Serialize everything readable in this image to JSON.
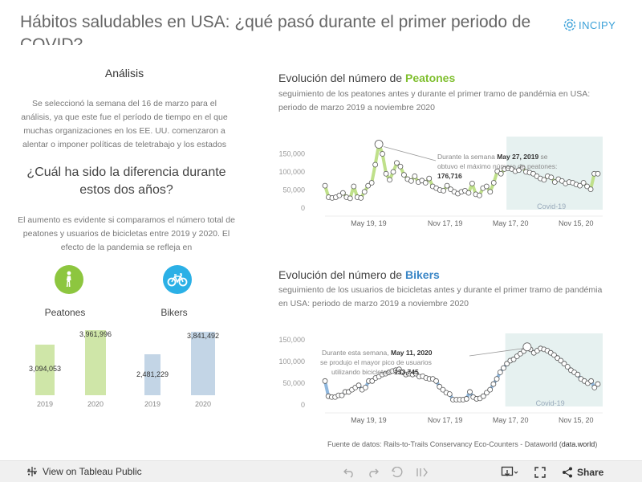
{
  "header": {
    "title": "Hábitos saludables en USA: ¿qué pasó durante el primer periodo de COVID?",
    "logo_text": "INCIPY"
  },
  "left": {
    "analysis_heading": "Análisis",
    "analysis_text": "Se seleccionó la semana del 16 de marzo para el análisis, ya que este fue el período de tiempo en el que muchas organizaciones en los EE. UU. comenzaron a alentar o imponer políticas de teletrabajo y los estados impusieron",
    "question": "¿Cuál ha sido la diferencia durante estos dos años?",
    "difference_text": "El aumento es evidente si comparamos el número total de peatones y usuarios de bicicletas entre 2019 y 2020. El efecto de la pandemia se refleja en",
    "peatones_label": "Peatones",
    "bikers_label": "Bikers",
    "colors": {
      "peatones": "#8dc63f",
      "bikers": "#2bb0e6"
    }
  },
  "totals": {
    "type": "bar",
    "groups": [
      {
        "name": "Peatones",
        "bars": [
          {
            "year": "2019",
            "value": 3094053,
            "label": "3,094,053"
          },
          {
            "year": "2020",
            "value": 3961996,
            "label": "3,961,996"
          }
        ],
        "color": "#cfe6a8"
      },
      {
        "name": "Bikers",
        "bars": [
          {
            "year": "2019",
            "value": 2481229,
            "label": "2,481,229"
          },
          {
            "year": "2020",
            "value": 3841492,
            "label": "3,841,492"
          }
        ],
        "color": "#c3d5e6"
      }
    ]
  },
  "peatones": {
    "title_prefix": "Evolución del número de ",
    "title_highlight": "Peatones",
    "subtitle": "seguimiento de los peatones antes y durante el primer tramo de pandémia en USA: periodo de marzo 2019  a noviembre 2020",
    "annotation_prefix": "Durante la semana",
    "annotation_date": "May 27, 2019",
    "annotation_mid": "se obtuvo el máximo número de peatones:",
    "annotation_value": "176,716",
    "shade_label": "Covid-19"
  },
  "bikers": {
    "title_prefix": "Evolución del número de ",
    "title_highlight": "Bikers",
    "subtitle": "seguimiento de los usuarios de bicicletas antes y durante el primer tramo de pandémia en USA: periodo de marzo 2019  a noviembre 2020",
    "annotation_prefix": "Durante esta semana,",
    "annotation_date": "May 11, 2020",
    "annotation_mid": "se produjo el mayor pico de usuarios utilizando bicicletas:",
    "annotation_value": "133,745",
    "shade_label": "Covid-19"
  },
  "chart_data": [
    {
      "type": "line",
      "title": "Evolución del número de Peatones",
      "ylim": [
        0,
        180000
      ],
      "yticks": [
        {
          "value": 150000,
          "label": "150,000"
        },
        {
          "value": 100000,
          "label": "100,000"
        },
        {
          "value": 50000,
          "label": "50,000"
        },
        {
          "value": 0,
          "label": "0"
        }
      ],
      "xticks": [
        "May 19, 19",
        "Nov 17, 19",
        "May 17, 20",
        "Nov 15, 20"
      ],
      "covid_shade": "Covid-19",
      "color": "#bfe08a",
      "series": [
        {
          "values": [
            62000,
            30000,
            28000,
            30000,
            35000,
            42000,
            30000,
            27000,
            60000,
            30000,
            28000,
            45000,
            62000,
            70000,
            120000,
            176716,
            150000,
            95000,
            78000,
            100000,
            125000,
            115000,
            92000,
            80000,
            75000,
            88000,
            72000,
            76000,
            70000,
            82000,
            60000,
            55000,
            50000,
            48000,
            62000,
            52000,
            45000,
            40000,
            45000,
            48000,
            42000,
            68000,
            38000,
            35000,
            55000,
            60000,
            45000,
            70000,
            102000,
            95000,
            108000,
            110000,
            108000,
            102000,
            105000,
            112000,
            100000,
            98000,
            95000,
            88000,
            82000,
            78000,
            88000,
            85000,
            72000,
            80000,
            75000,
            68000,
            72000,
            70000,
            65000,
            62000,
            70000,
            60000,
            52000,
            95000,
            95000
          ]
        }
      ]
    },
    {
      "type": "line",
      "title": "Evolución del número de Bikers",
      "ylim": [
        0,
        150000
      ],
      "yticks": [
        {
          "value": 150000,
          "label": "150,000"
        },
        {
          "value": 100000,
          "label": "100,000"
        },
        {
          "value": 50000,
          "label": "50,000"
        },
        {
          "value": 0,
          "label": "0"
        }
      ],
      "xticks": [
        "May 19, 19",
        "Nov 17, 19",
        "May 17, 20",
        "Nov 15, 20"
      ],
      "covid_shade": "Covid-19",
      "color": "#8fb7dd",
      "series": [
        {
          "values": [
            55000,
            20000,
            18000,
            18000,
            22000,
            22000,
            30000,
            30000,
            35000,
            40000,
            45000,
            35000,
            40000,
            55000,
            55000,
            62000,
            65000,
            70000,
            72000,
            75000,
            78000,
            80000,
            82000,
            75000,
            70000,
            72000,
            70000,
            72000,
            65000,
            66000,
            62000,
            60000,
            60000,
            55000,
            42000,
            35000,
            28000,
            25000,
            12000,
            12000,
            12000,
            12000,
            14000,
            30000,
            18000,
            14000,
            15000,
            20000,
            28000,
            35000,
            48000,
            60000,
            75000,
            85000,
            95000,
            102000,
            105000,
            112000,
            118000,
            124000,
            133745,
            128000,
            120000,
            125000,
            130000,
            128000,
            125000,
            120000,
            115000,
            108000,
            102000,
            95000,
            88000,
            80000,
            75000,
            70000,
            60000,
            55000,
            50000,
            55000,
            40000,
            48000
          ]
        }
      ]
    }
  ],
  "source": {
    "prefix": "Fuente de datos: Rails-to-Trails Conservancy Eco-Counters - Dataworld (",
    "link": "data.world",
    "suffix": ")"
  },
  "footer": {
    "view_label": "View on Tableau Public",
    "share_label": "Share"
  }
}
